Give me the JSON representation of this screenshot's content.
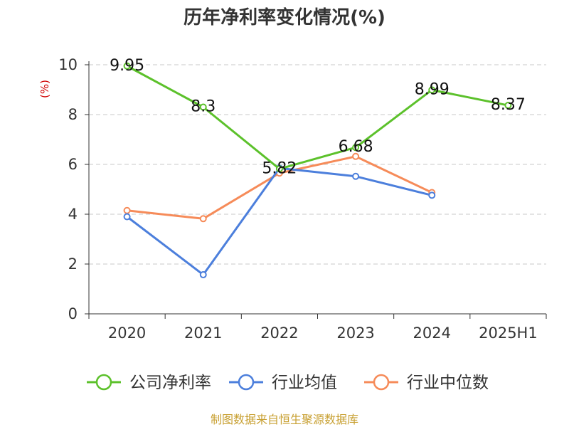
{
  "chart_data": {
    "type": "line",
    "title": "历年净利率变化情况(%)",
    "ylabel": "(%)",
    "xlabel": "",
    "categories": [
      "2020",
      "2021",
      "2022",
      "2023",
      "2024",
      "2025H1"
    ],
    "ylim": [
      0,
      10
    ],
    "yticks": [
      0,
      2,
      4,
      6,
      8,
      10
    ],
    "grid": true,
    "legend_position": "bottom",
    "series": [
      {
        "name": "公司净利率",
        "color": "#5cc12b",
        "values": [
          9.95,
          8.3,
          5.82,
          6.68,
          8.99,
          8.37
        ],
        "data_labels": [
          "9.95",
          "8.3",
          "5.82",
          "6.68",
          "8.99",
          "8.37"
        ]
      },
      {
        "name": "行业均值",
        "color": "#4c7fdc",
        "values": [
          3.9,
          1.57,
          5.85,
          5.52,
          4.76,
          null
        ],
        "data_labels": []
      },
      {
        "name": "行业中位数",
        "color": "#f68b59",
        "values": [
          4.15,
          3.82,
          5.65,
          6.32,
          4.87,
          null
        ],
        "data_labels": []
      }
    ]
  },
  "footer": {
    "source": "制图数据来自恒生聚源数据库"
  }
}
